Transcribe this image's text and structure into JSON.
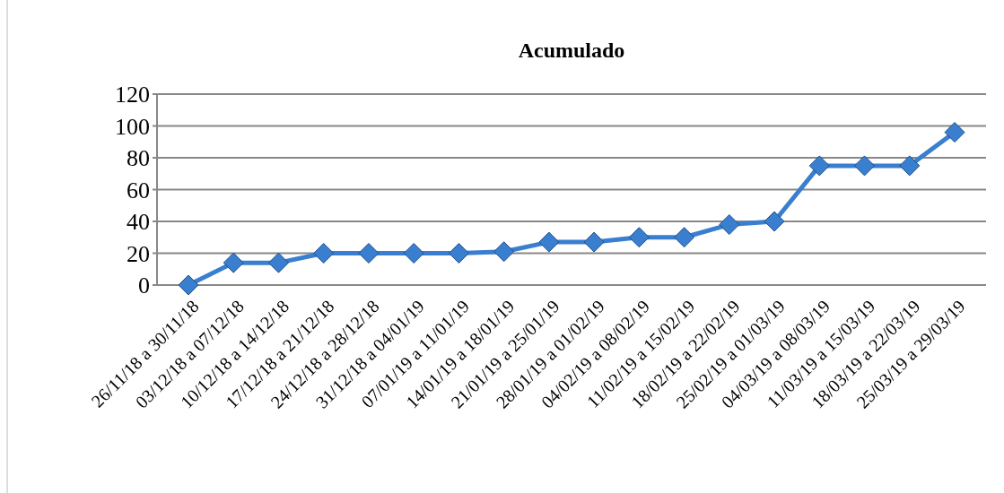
{
  "chart_data": {
    "type": "line",
    "title": "Acumulado",
    "categories": [
      "26/11/18 a 30/11/18",
      "03/12/18 a 07/12/18",
      "10/12/18 a 14/12/18",
      "17/12/18 a 21/12/18",
      "24/12/18 a 28/12/18",
      "31/12/18 a 04/01/19",
      "07/01/19 a 11/01/19",
      "14/01/19 a 18/01/19",
      "21/01/19 a 25/01/19",
      "28/01/19 a 01/02/19",
      "04/02/19 a 08/02/19",
      "11/02/19 a 15/02/19",
      "18/02/19 a 22/02/19",
      "25/02/19 a 01/03/19",
      "04/03/19 a 08/03/19",
      "11/03/19 a 15/03/19",
      "18/03/19 a 22/03/19",
      "25/03/19 a 29/03/19"
    ],
    "series": [
      {
        "color": "#3a7fcf",
        "values": [
          0,
          14,
          14,
          20,
          20,
          20,
          20,
          21,
          27,
          27,
          30,
          30,
          38,
          40,
          75,
          75,
          75,
          96
        ]
      }
    ],
    "ylim": [
      0,
      120
    ],
    "yticks": [
      0,
      20,
      40,
      60,
      80,
      100,
      120
    ],
    "grid": "y",
    "marker": "diamond",
    "line_style": "solid"
  }
}
